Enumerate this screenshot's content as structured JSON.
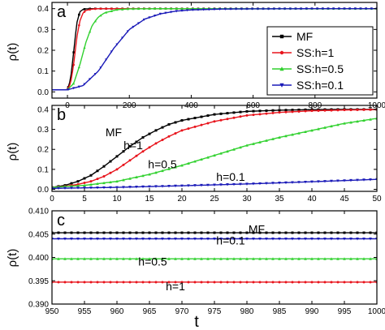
{
  "colors": {
    "MF": "#000000",
    "SS:h=1": "#e8141c",
    "SS:h=0.5": "#31d12f",
    "SS:h=0.1": "#1a1ab8"
  },
  "x_axis_label": "t",
  "chart_data": [
    {
      "type": "line",
      "panel_label": "a",
      "ylabel": "ρ(t)",
      "xlim": [
        -50,
        1000
      ],
      "ylim": [
        -0.03,
        0.43
      ],
      "x_ticks": [
        0,
        200,
        400,
        600,
        800,
        1000
      ],
      "y_ticks": [
        "0.0",
        "0.1",
        "0.2",
        "0.3",
        "0.4"
      ],
      "y_tick_values": [
        0,
        0.1,
        0.2,
        0.3,
        0.4
      ],
      "legend": {
        "position": "bottom-right",
        "entries": [
          "MF",
          "SS:h=1",
          "SS:h=0.5",
          "SS:h=0.1"
        ]
      },
      "series": [
        {
          "name": "MF",
          "x": [
            0,
            10,
            20,
            30,
            40,
            50,
            60,
            80,
            100,
            150,
            1000
          ],
          "y": [
            0.01,
            0.06,
            0.19,
            0.33,
            0.385,
            0.396,
            0.399,
            0.4,
            0.4,
            0.4,
            0.4
          ]
        },
        {
          "name": "SS:h=1",
          "x": [
            0,
            10,
            20,
            30,
            40,
            50,
            60,
            80,
            100,
            150,
            1000
          ],
          "y": [
            0.01,
            0.04,
            0.13,
            0.26,
            0.34,
            0.378,
            0.392,
            0.398,
            0.4,
            0.4,
            0.4
          ]
        },
        {
          "name": "SS:h=0.5",
          "x": [
            0,
            20,
            40,
            60,
            80,
            100,
            120,
            160,
            200,
            300,
            1000
          ],
          "y": [
            0.01,
            0.04,
            0.13,
            0.24,
            0.32,
            0.36,
            0.38,
            0.395,
            0.399,
            0.4,
            0.4
          ]
        },
        {
          "name": "SS:h=0.1",
          "x": [
            0,
            50,
            100,
            150,
            200,
            250,
            300,
            350,
            400,
            500,
            600,
            800,
            1000
          ],
          "y": [
            0.01,
            0.03,
            0.1,
            0.21,
            0.3,
            0.35,
            0.375,
            0.388,
            0.394,
            0.398,
            0.399,
            0.4,
            0.4
          ]
        }
      ]
    },
    {
      "type": "line",
      "panel_label": "b",
      "ylabel": "ρ(t)",
      "xlim": [
        0,
        50
      ],
      "ylim": [
        -0.01,
        0.42
      ],
      "x_ticks": [
        0,
        5,
        10,
        15,
        20,
        25,
        30,
        35,
        40,
        45,
        50
      ],
      "y_ticks": [
        "0.0",
        "0.1",
        "0.2",
        "0.3",
        "0.4"
      ],
      "y_tick_values": [
        0,
        0.1,
        0.2,
        0.3,
        0.4
      ],
      "annotations": [
        {
          "text": "MF",
          "x": 9.5,
          "y": 0.265
        },
        {
          "text": "h=1",
          "x": 12.5,
          "y": 0.2
        },
        {
          "text": "h=0.5",
          "x": 17,
          "y": 0.105
        },
        {
          "text": "h=0.1",
          "x": 27.5,
          "y": 0.042
        }
      ],
      "series": [
        {
          "name": "MF",
          "x": [
            0,
            2,
            4,
            6,
            8,
            10,
            12,
            14,
            16,
            18,
            20,
            25,
            30,
            35,
            40,
            45,
            50
          ],
          "y": [
            0.01,
            0.02,
            0.04,
            0.07,
            0.115,
            0.165,
            0.215,
            0.26,
            0.295,
            0.325,
            0.345,
            0.375,
            0.39,
            0.396,
            0.399,
            0.4,
            0.4
          ]
        },
        {
          "name": "SS:h=1",
          "x": [
            0,
            2,
            4,
            6,
            8,
            10,
            12,
            14,
            16,
            18,
            20,
            25,
            30,
            35,
            40,
            45,
            50
          ],
          "y": [
            0.01,
            0.015,
            0.025,
            0.04,
            0.065,
            0.1,
            0.145,
            0.19,
            0.23,
            0.265,
            0.295,
            0.34,
            0.37,
            0.385,
            0.393,
            0.397,
            0.399
          ]
        },
        {
          "name": "SS:h=0.5",
          "x": [
            0,
            5,
            10,
            15,
            20,
            25,
            30,
            35,
            40,
            45,
            50
          ],
          "y": [
            0.01,
            0.02,
            0.04,
            0.075,
            0.12,
            0.17,
            0.22,
            0.26,
            0.295,
            0.33,
            0.355
          ]
        },
        {
          "name": "SS:h=0.1",
          "x": [
            0,
            10,
            20,
            30,
            40,
            50
          ],
          "y": [
            0.005,
            0.01,
            0.018,
            0.027,
            0.038,
            0.05
          ]
        }
      ]
    },
    {
      "type": "line",
      "panel_label": "c",
      "ylabel": "ρ(t)",
      "xlim": [
        950,
        1000
      ],
      "ylim": [
        0.39,
        0.41
      ],
      "x_ticks": [
        950,
        955,
        960,
        965,
        970,
        975,
        980,
        985,
        990,
        995,
        1000
      ],
      "y_ticks": [
        "0.390",
        "0.395",
        "0.400",
        "0.405",
        "0.410"
      ],
      "y_tick_values": [
        0.39,
        0.395,
        0.4,
        0.405,
        0.41
      ],
      "annotations": [
        {
          "text": "MF",
          "x": 981.5,
          "y": 0.4052
        },
        {
          "text": "h=0.1",
          "x": 977.5,
          "y": 0.4028
        },
        {
          "text": "h=0.5",
          "x": 965.5,
          "y": 0.3983
        },
        {
          "text": "h=1",
          "x": 969,
          "y": 0.393
        }
      ],
      "series": [
        {
          "name": "MF",
          "x": [
            950,
            1000
          ],
          "y": [
            0.4053,
            0.4053
          ]
        },
        {
          "name": "SS:h=1",
          "x": [
            950,
            1000
          ],
          "y": [
            0.3947,
            0.3947
          ]
        },
        {
          "name": "SS:h=0.5",
          "x": [
            950,
            1000
          ],
          "y": [
            0.3997,
            0.3997
          ]
        },
        {
          "name": "SS:h=0.1",
          "x": [
            950,
            1000
          ],
          "y": [
            0.404,
            0.404
          ]
        }
      ]
    }
  ]
}
